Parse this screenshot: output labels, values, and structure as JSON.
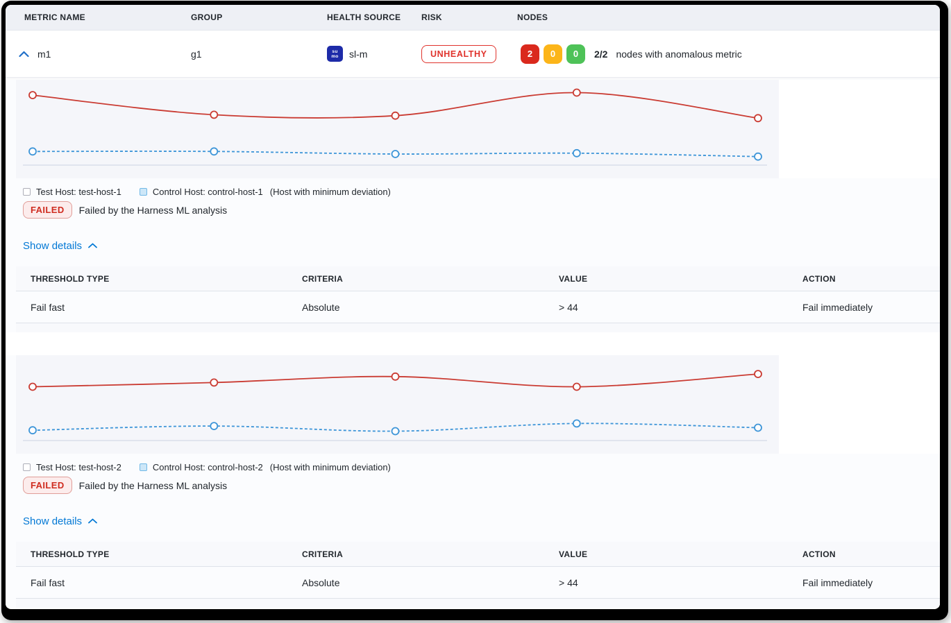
{
  "table_header": {
    "columns": [
      "METRIC NAME",
      "GROUP",
      "HEALTH SOURCE",
      "RISK",
      "NODES"
    ]
  },
  "metric_row": {
    "metric_name": "m1",
    "group": "g1",
    "health_source": {
      "icon": "sumo-logic-icon",
      "icon_line1": "su",
      "icon_line2": "mo",
      "label": "sl-m"
    },
    "risk": "UNHEALTHY",
    "nodes": {
      "counts": [
        {
          "value": "2"
        },
        {
          "value": "0"
        },
        {
          "value": "0"
        }
      ],
      "ratio": "2/2",
      "description": "nodes with anomalous metric"
    }
  },
  "colors": {
    "risk_red": "#e0332c",
    "failed_red": "#cf2c20",
    "primary_blue": "#0278d5",
    "node_red": "#da291d",
    "node_amber": "#fcb519",
    "node_green": "#4ec258",
    "test_line_red": "#ca3b32",
    "control_line_blue": "#3d95d8",
    "sumo_navy": "#1d2ba8",
    "chart_panel_bg": "#f5f6fa"
  },
  "sections": [
    {
      "legend": {
        "test_label": "Test Host: test-host-1",
        "control_label": "Control Host: control-host-1",
        "note": "(Host with minimum deviation)"
      },
      "status_badge": "FAILED",
      "status_message": "Failed by the Harness ML analysis",
      "show_details_label": "Show details",
      "details_table": {
        "columns": [
          "THRESHOLD TYPE",
          "CRITERIA",
          "VALUE",
          "ACTION"
        ],
        "rows": [
          [
            "Fail fast",
            "Absolute",
            "> 44",
            "Fail immediately"
          ]
        ]
      }
    },
    {
      "legend": {
        "test_label": "Test Host: test-host-2",
        "control_label": "Control Host: control-host-2",
        "note": "(Host with minimum deviation)"
      },
      "status_badge": "FAILED",
      "status_message": "Failed by the Harness ML analysis",
      "show_details_label": "Show details",
      "details_table": {
        "columns": [
          "THRESHOLD TYPE",
          "CRITERIA",
          "VALUE",
          "ACTION"
        ],
        "rows": [
          [
            "Fail fast",
            "Absolute",
            "> 44",
            "Fail immediately"
          ]
        ]
      }
    }
  ],
  "chart_data": [
    {
      "type": "line",
      "title": "",
      "x": [
        1,
        2,
        3,
        4,
        5
      ],
      "ylim": [
        0,
        100
      ],
      "grid": false,
      "axis_line": true,
      "series": [
        {
          "name": "Test Host: test-host-1",
          "style": "solid",
          "color": "#ca3b32",
          "values": [
            82,
            59,
            58,
            85,
            55
          ]
        },
        {
          "name": "Control Host: control-host-1",
          "style": "dashed",
          "color": "#3d95d8",
          "values": [
            16,
            16,
            13,
            14,
            10
          ]
        }
      ]
    },
    {
      "type": "line",
      "title": "",
      "x": [
        1,
        2,
        3,
        4,
        5
      ],
      "ylim": [
        0,
        100
      ],
      "grid": false,
      "axis_line": true,
      "series": [
        {
          "name": "Test Host: test-host-2",
          "style": "solid",
          "color": "#ca3b32",
          "values": [
            63,
            68,
            75,
            63,
            78
          ]
        },
        {
          "name": "Control Host: control-host-2",
          "style": "dashed",
          "color": "#3d95d8",
          "values": [
            12,
            17,
            11,
            20,
            15
          ]
        }
      ]
    }
  ]
}
